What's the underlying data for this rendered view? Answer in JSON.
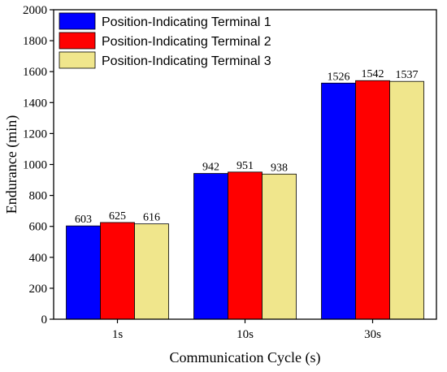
{
  "chart_data": {
    "type": "bar",
    "categories": [
      "1s",
      "10s",
      "30s"
    ],
    "series": [
      {
        "name": "Position-Indicating Terminal 1",
        "values": [
          603,
          942,
          1526
        ],
        "color": "#0000ff"
      },
      {
        "name": "Position-Indicating Terminal 2",
        "values": [
          625,
          951,
          1542
        ],
        "color": "#ff0000"
      },
      {
        "name": "Position-Indicating Terminal 3",
        "values": [
          616,
          938,
          1537
        ],
        "color": "#f0e68c"
      }
    ],
    "xlabel": "Communication Cycle (s)",
    "ylabel": "Endurance (min)",
    "ylim": [
      0,
      2000
    ],
    "yticks": [
      0,
      200,
      400,
      600,
      800,
      1000,
      1200,
      1400,
      1600,
      1800,
      2000
    ],
    "grid": false,
    "legend_position": "top-left",
    "data_labels": true
  }
}
